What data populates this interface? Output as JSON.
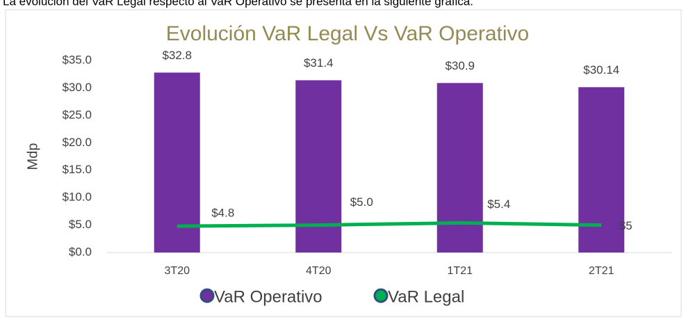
{
  "intro_text": "La evolución del VaR Legal respecto al VaR Operativo se presenta en la siguiente gráfica.",
  "chart_data": {
    "type": "bar",
    "title": "Evolución VaR Legal Vs VaR Operativo",
    "y_label": "Mdp",
    "categories": [
      "3T20",
      "4T20",
      "1T21",
      "2T21"
    ],
    "series": [
      {
        "name": "VaR Operativo",
        "type": "bar",
        "color": "#7030a0",
        "values": [
          32.8,
          31.4,
          30.9,
          30.14
        ],
        "value_labels": [
          "$32.8",
          "$31.4",
          "$30.9",
          "$30.14"
        ]
      },
      {
        "name": "VaR Legal",
        "type": "line",
        "color": "#00b050",
        "values": [
          4.8,
          5.0,
          5.4,
          5
        ],
        "value_labels": [
          "$4.8",
          "$5.0",
          "$5.4",
          "$5"
        ]
      }
    ],
    "ylim": [
      0,
      35
    ],
    "yticks": [
      {
        "value": 0,
        "label": "$0.0"
      },
      {
        "value": 5,
        "label": "$5.0"
      },
      {
        "value": 10,
        "label": "$10.0"
      },
      {
        "value": 15,
        "label": "$15.0"
      },
      {
        "value": 20,
        "label": "$20.0"
      },
      {
        "value": 25,
        "label": "$25.0"
      },
      {
        "value": 30,
        "label": "$30.0"
      },
      {
        "value": 35,
        "label": "$35.0"
      }
    ],
    "grid": false,
    "legend": "bottom"
  }
}
